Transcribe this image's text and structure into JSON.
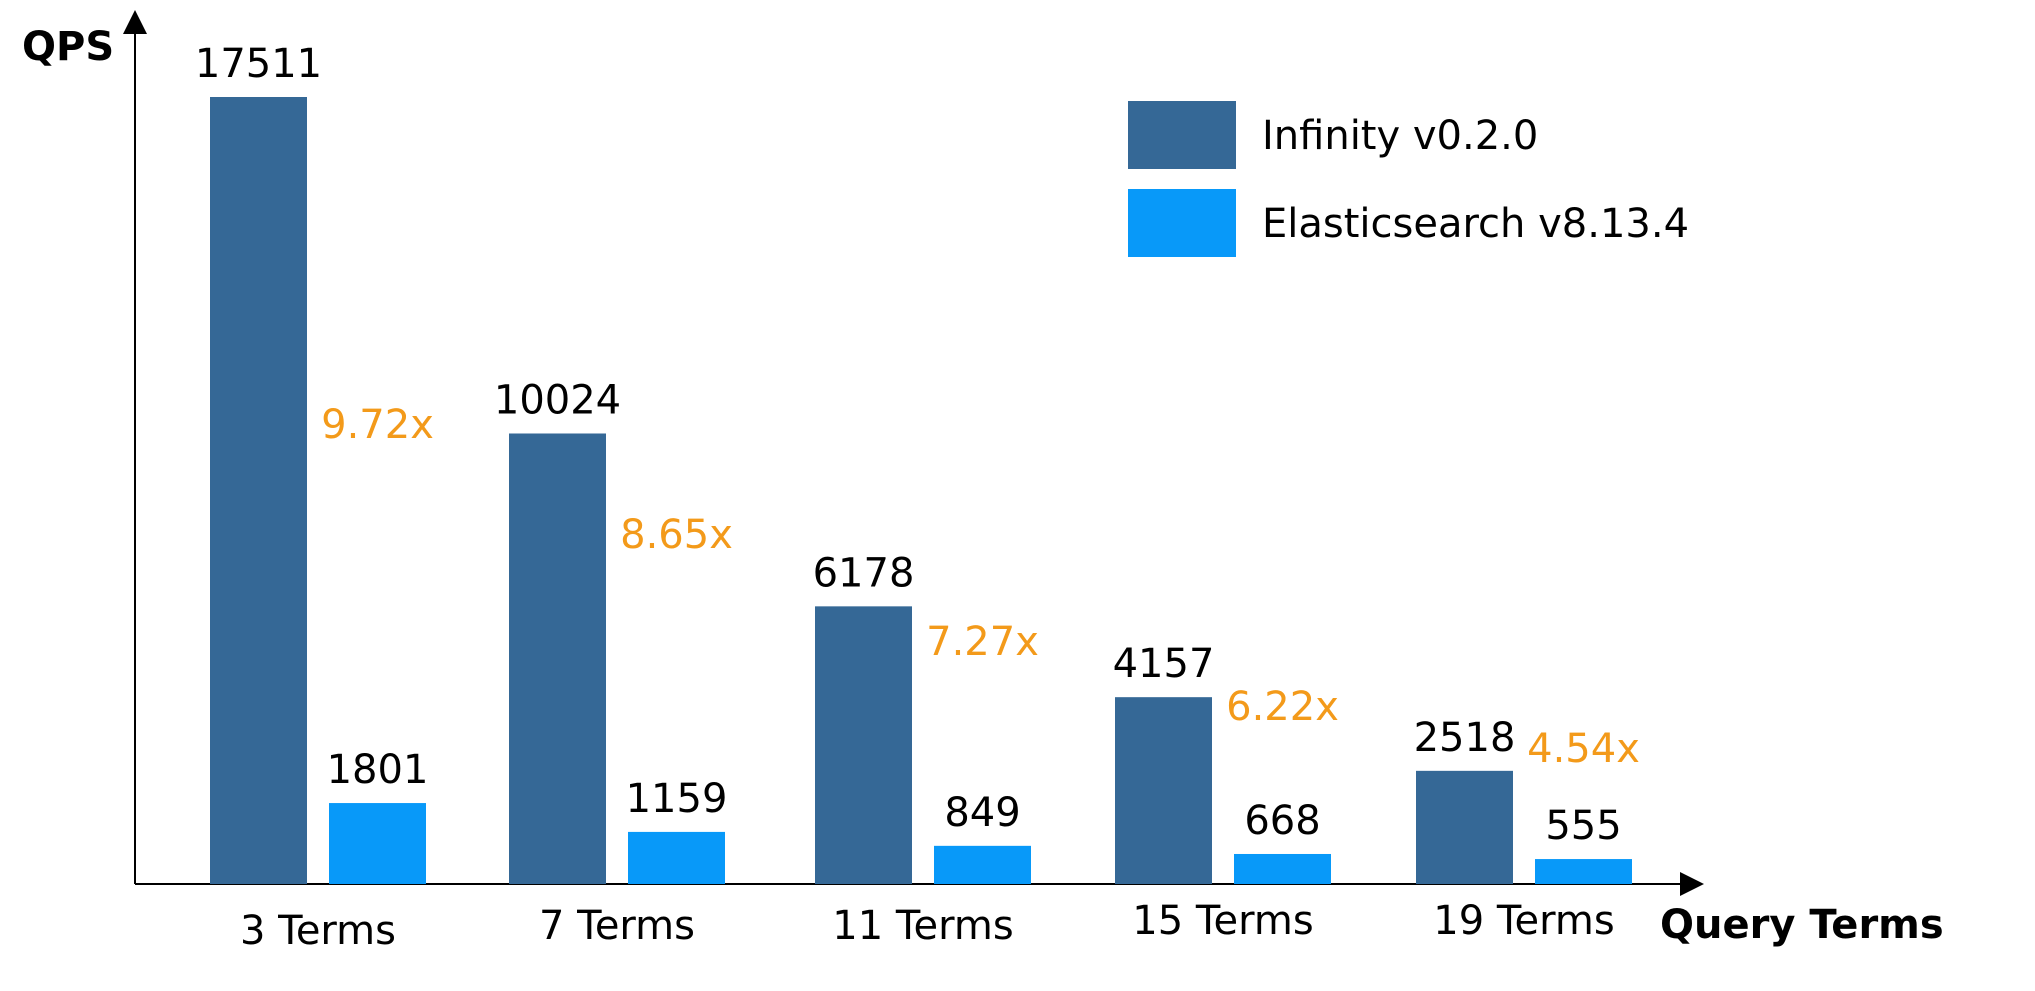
{
  "chart_data": {
    "type": "bar",
    "title": "",
    "xlabel": "Query Terms",
    "ylabel": "QPS",
    "categories": [
      "3 Terms",
      "7 Terms",
      "11 Terms",
      "15 Terms",
      "19 Terms"
    ],
    "series": [
      {
        "name": "Infinity v0.2.0",
        "color": "#356896",
        "values": [
          17511,
          10024,
          6178,
          4157,
          2518
        ]
      },
      {
        "name": "Elasticsearch v8.13.4",
        "color": "#0899F9",
        "values": [
          1801,
          1159,
          849,
          668,
          555
        ]
      }
    ],
    "annotations": [
      "9.72x",
      "8.65x",
      "7.27x",
      "6.22x",
      "4.54x"
    ],
    "annotation_color": "#F39A1A",
    "ylim": [
      0,
      19000
    ],
    "grid": false,
    "legend_position": "top-right"
  }
}
